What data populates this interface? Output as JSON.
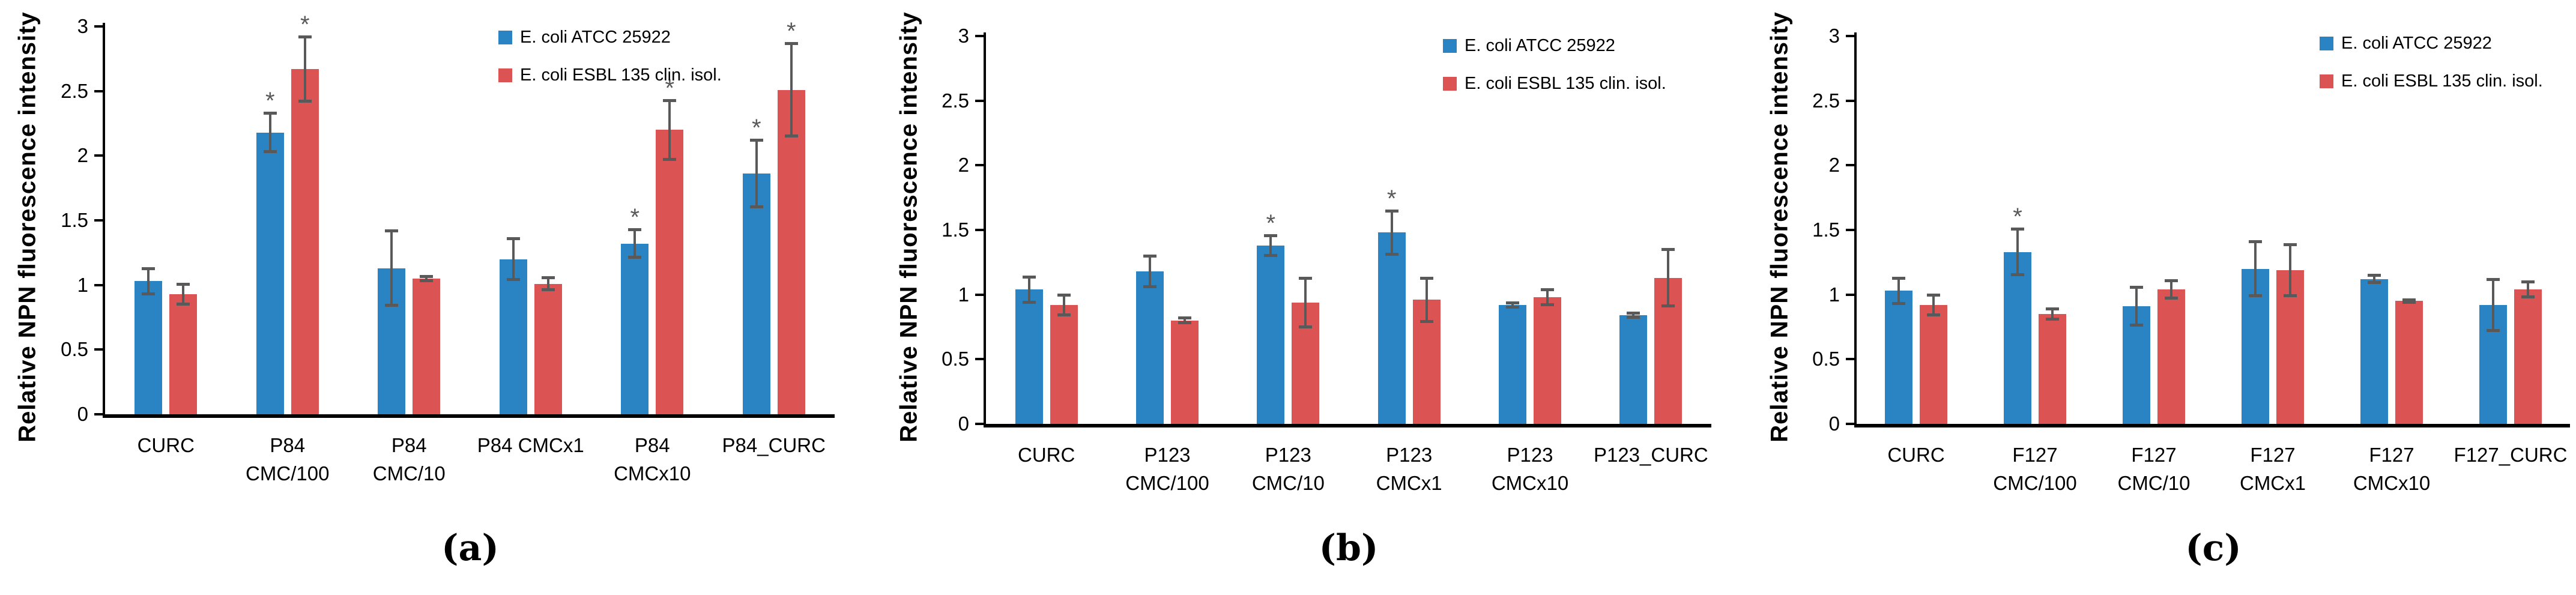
{
  "figure": {
    "ylabel": "Relative NPN fluorescence intensity",
    "sig_marker": "*",
    "colors": {
      "series_atcc": "#2A84C4",
      "series_esbl": "#DC5353",
      "error_bar": "#595959",
      "axis": "#000000",
      "background": "#ffffff"
    }
  },
  "chart_data": [
    {
      "type": "bar",
      "panel_label": "(a)",
      "ylabel": "Relative NPN fluorescence intensity",
      "ylim": [
        0,
        3
      ],
      "ytick_values": [
        0,
        0.5,
        1,
        1.5,
        2,
        2.5,
        3
      ],
      "ytick_labels": [
        "0",
        "0.5",
        "1",
        "1.5",
        "2",
        "2.5",
        "3"
      ],
      "grid": false,
      "legend_position": "top-right",
      "sig_marker": "*",
      "categories": [
        "CURC",
        "P84 CMC/100",
        "P84 CMC/10",
        "P84 CMCx1",
        "P84 CMCx10",
        "P84_CURC"
      ],
      "category_lines": [
        [
          "CURC"
        ],
        [
          "P84",
          "CMC/100"
        ],
        [
          "P84",
          "CMC/10"
        ],
        [
          "P84 CMCx1"
        ],
        [
          "P84",
          "CMCx10"
        ],
        [
          "P84_CURC"
        ]
      ],
      "series": [
        {
          "name": "E. coli ATCC 25922",
          "color": "#2A84C4",
          "values": [
            1.03,
            2.18,
            1.13,
            1.2,
            1.32,
            1.86
          ],
          "errors": [
            0.1,
            0.15,
            0.29,
            0.16,
            0.11,
            0.26
          ],
          "sig": [
            false,
            true,
            false,
            false,
            true,
            true
          ]
        },
        {
          "name": "E. coli ESBL 135 clin. isol.",
          "color": "#DC5353",
          "values": [
            0.93,
            2.67,
            1.05,
            1.01,
            2.2,
            2.51
          ],
          "errors": [
            0.08,
            0.25,
            0.02,
            0.05,
            0.23,
            0.36
          ],
          "sig": [
            false,
            true,
            false,
            false,
            true,
            true
          ]
        }
      ]
    },
    {
      "type": "bar",
      "panel_label": "(b)",
      "ylabel": "Relative NPN fluorescence intensity",
      "ylim": [
        0,
        3
      ],
      "ytick_values": [
        0,
        0.5,
        1,
        1.5,
        2,
        2.5,
        3
      ],
      "ytick_labels": [
        "0",
        "0.5",
        "1",
        "1.5",
        "2",
        "2.5",
        "3"
      ],
      "grid": false,
      "legend_position": "top-right",
      "sig_marker": "*",
      "categories": [
        "CURC",
        "P123 CMC/100",
        "P123 CMC/10",
        "P123 CMCx1",
        "P123 CMCx10",
        "P123_CURC"
      ],
      "category_lines": [
        [
          "CURC"
        ],
        [
          "P123",
          "CMC/100"
        ],
        [
          "P123",
          "CMC/10"
        ],
        [
          "P123",
          "CMCx1"
        ],
        [
          "P123",
          "CMCx10"
        ],
        [
          "P123_CURC"
        ]
      ],
      "series": [
        {
          "name": "E. coli ATCC 25922",
          "color": "#2A84C4",
          "values": [
            1.04,
            1.18,
            1.38,
            1.48,
            0.92,
            0.84
          ],
          "errors": [
            0.1,
            0.12,
            0.08,
            0.17,
            0.02,
            0.02
          ],
          "sig": [
            false,
            false,
            true,
            true,
            false,
            false
          ]
        },
        {
          "name": "E. coli ESBL 135 clin. isol.",
          "color": "#DC5353",
          "values": [
            0.92,
            0.8,
            0.94,
            0.96,
            0.98,
            1.13
          ],
          "errors": [
            0.08,
            0.02,
            0.19,
            0.17,
            0.06,
            0.22
          ],
          "sig": [
            false,
            false,
            false,
            false,
            false,
            false
          ]
        }
      ]
    },
    {
      "type": "bar",
      "panel_label": "(c)",
      "ylabel": "Relative NPN fluorescence intensity",
      "ylim": [
        0,
        3
      ],
      "ytick_values": [
        0,
        0.5,
        1,
        1.5,
        2,
        2.5,
        3
      ],
      "ytick_labels": [
        "0",
        "0.5",
        "1",
        "1.5",
        "2",
        "2.5",
        "3"
      ],
      "grid": false,
      "legend_position": "top-right",
      "sig_marker": "*",
      "categories": [
        "CURC",
        "F127 CMC/100",
        "F127 CMC/10",
        "F127 CMCx1",
        "F127 CMCx10",
        "F127_CURC"
      ],
      "category_lines": [
        [
          "CURC"
        ],
        [
          "F127",
          "CMC/100"
        ],
        [
          "F127",
          "CMC/10"
        ],
        [
          "F127",
          "CMCx1"
        ],
        [
          "F127",
          "CMCx10"
        ],
        [
          "F127_CURC"
        ]
      ],
      "series": [
        {
          "name": "E. coli ATCC 25922",
          "color": "#2A84C4",
          "values": [
            1.03,
            1.33,
            0.91,
            1.2,
            1.12,
            0.92
          ],
          "errors": [
            0.1,
            0.18,
            0.15,
            0.21,
            0.03,
            0.2
          ],
          "sig": [
            false,
            true,
            false,
            false,
            false,
            false
          ]
        },
        {
          "name": "E. coli ESBL 135 clin. isol.",
          "color": "#DC5353",
          "values": [
            0.92,
            0.85,
            1.04,
            1.19,
            0.95,
            1.04
          ],
          "errors": [
            0.08,
            0.04,
            0.07,
            0.2,
            0.01,
            0.06
          ],
          "sig": [
            false,
            false,
            false,
            false,
            false,
            false
          ]
        }
      ]
    }
  ]
}
